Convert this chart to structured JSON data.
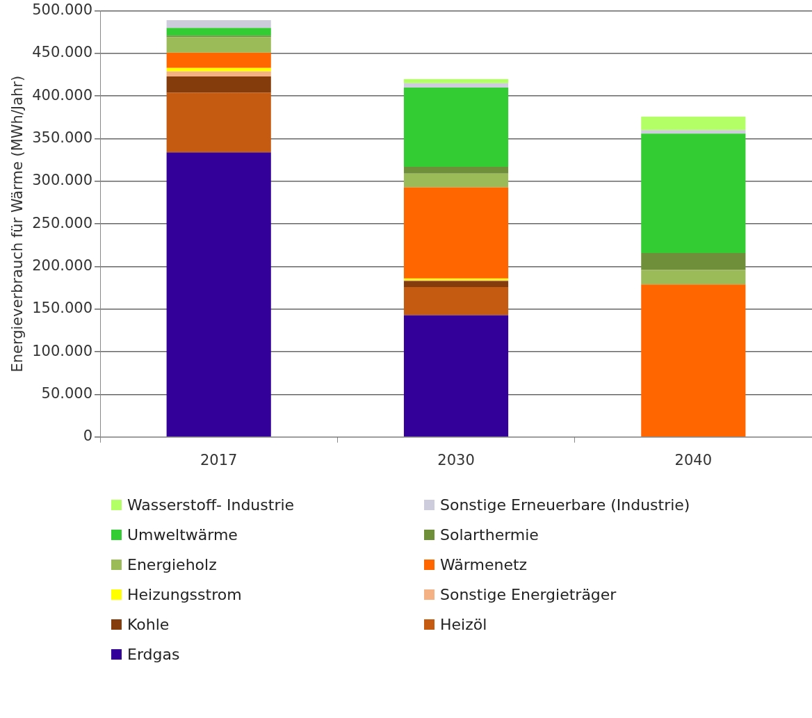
{
  "chart_data": {
    "type": "bar",
    "stacked": true,
    "ylabel": "Energieverbrauch für Wärme (MWh/Jahr)",
    "categories": [
      "2017",
      "2030",
      "2040"
    ],
    "ylim": [
      0,
      500000
    ],
    "yticks": [
      {
        "value": 0,
        "label": "0"
      },
      {
        "value": 50000,
        "label": "50.000"
      },
      {
        "value": 100000,
        "label": "100.000"
      },
      {
        "value": 150000,
        "label": "150.000"
      },
      {
        "value": 200000,
        "label": "200.000"
      },
      {
        "value": 250000,
        "label": "250.000"
      },
      {
        "value": 300000,
        "label": "300.000"
      },
      {
        "value": 350000,
        "label": "350.000"
      },
      {
        "value": 400000,
        "label": "400.000"
      },
      {
        "value": 450000,
        "label": "450.000"
      },
      {
        "value": 500000,
        "label": "500.000"
      }
    ],
    "grid": "y",
    "legend": "bottom",
    "series": [
      {
        "name": "Erdgas",
        "color": "#330099",
        "values": [
          334000,
          143000,
          0
        ]
      },
      {
        "name": "Heizöl",
        "color": "#c55a11",
        "values": [
          70000,
          33000,
          0
        ]
      },
      {
        "name": "Kohle",
        "color": "#843c0c",
        "values": [
          19000,
          7000,
          0
        ]
      },
      {
        "name": "Sonstige Energieträger",
        "color": "#f4b183",
        "values": [
          6000,
          1000,
          0
        ]
      },
      {
        "name": "Heizungsstrom",
        "color": "#ffff00",
        "values": [
          4000,
          2000,
          0
        ]
      },
      {
        "name": "Wärmenetz",
        "color": "#ff6600",
        "values": [
          18000,
          107000,
          179000
        ]
      },
      {
        "name": "Energieholz",
        "color": "#9bbb59",
        "values": [
          18000,
          16000,
          17000
        ]
      },
      {
        "name": "Solarthermie",
        "color": "#6f8f3a",
        "values": [
          2000,
          8000,
          20000
        ]
      },
      {
        "name": "Umweltwärme",
        "color": "#33cc33",
        "values": [
          9000,
          93000,
          140000
        ]
      },
      {
        "name": "Sonstige Erneuerbare (Industrie)",
        "color": "#ccccdd",
        "values": [
          9000,
          5000,
          4000
        ]
      },
      {
        "name": "Wasserstoff- Industrie",
        "color": "#b3ff66",
        "values": [
          0,
          5000,
          16000
        ]
      }
    ]
  }
}
